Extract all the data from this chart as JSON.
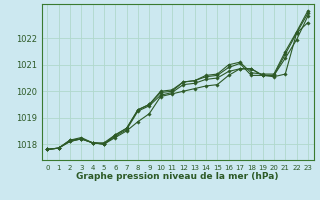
{
  "bg_color": "#cce8f0",
  "grid_color": "#b0d8cc",
  "line_color": "#2d5a27",
  "border_color": "#3a7a30",
  "xlabel": "Graphe pression niveau de la mer (hPa)",
  "xlim": [
    -0.5,
    23.5
  ],
  "ylim": [
    1017.4,
    1023.3
  ],
  "yticks": [
    1018,
    1019,
    1020,
    1021,
    1022
  ],
  "xticks": [
    0,
    1,
    2,
    3,
    4,
    5,
    6,
    7,
    8,
    9,
    10,
    11,
    12,
    13,
    14,
    15,
    16,
    17,
    18,
    19,
    20,
    21,
    22,
    23
  ],
  "series": [
    [
      1017.8,
      1017.85,
      1018.1,
      1018.2,
      1018.05,
      1018.0,
      1018.25,
      1018.5,
      1018.85,
      1019.15,
      1019.8,
      1019.9,
      1020.0,
      1020.1,
      1020.2,
      1020.25,
      1020.6,
      1020.85,
      1020.85,
      1020.6,
      1020.55,
      1020.65,
      1022.2,
      1022.6
    ],
    [
      1017.8,
      1017.85,
      1018.1,
      1018.2,
      1018.05,
      1018.0,
      1018.3,
      1018.55,
      1019.25,
      1019.45,
      1019.85,
      1019.95,
      1020.25,
      1020.3,
      1020.45,
      1020.5,
      1020.75,
      1020.85,
      1020.85,
      1020.6,
      1020.6,
      1021.25,
      1021.95,
      1022.85
    ],
    [
      1017.8,
      1017.85,
      1018.15,
      1018.25,
      1018.05,
      1018.05,
      1018.35,
      1018.6,
      1019.3,
      1019.5,
      1020.0,
      1020.05,
      1020.35,
      1020.4,
      1020.6,
      1020.65,
      1021.0,
      1021.1,
      1020.7,
      1020.65,
      1020.65,
      1021.5,
      1022.25,
      1023.05
    ],
    [
      1017.8,
      1017.85,
      1018.15,
      1018.2,
      1018.05,
      1018.0,
      1018.35,
      1018.6,
      1019.3,
      1019.5,
      1019.95,
      1020.0,
      1020.35,
      1020.4,
      1020.55,
      1020.6,
      1020.9,
      1021.05,
      1020.6,
      1020.6,
      1020.6,
      1021.4,
      1022.2,
      1022.95
    ]
  ]
}
